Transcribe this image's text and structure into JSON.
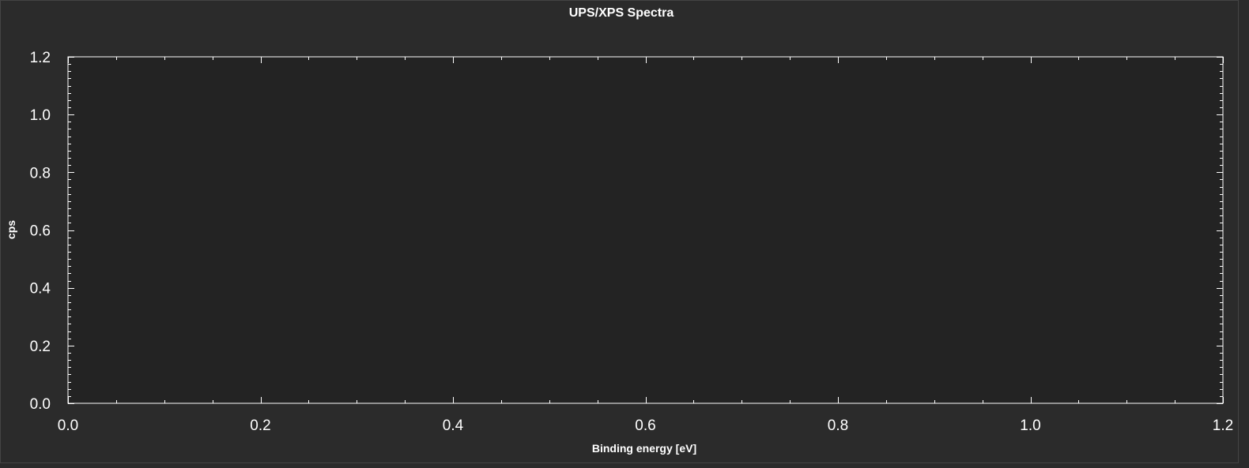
{
  "chart_data": {
    "type": "line",
    "title": "UPS/XPS Spectra",
    "xlabel": "Binding energy [eV]",
    "ylabel": "cps",
    "xlim": [
      0.0,
      1.2
    ],
    "ylim": [
      0.0,
      1.2
    ],
    "x_ticks": [
      "0.0",
      "0.2",
      "0.4",
      "0.6",
      "0.8",
      "1.0",
      "1.2"
    ],
    "y_ticks": [
      "0.0",
      "0.2",
      "0.4",
      "0.6",
      "0.8",
      "1.0",
      "1.2"
    ],
    "grid": false,
    "series": [],
    "colors": {
      "background": "#2b2b2b",
      "plot_area": "#232323",
      "axis": "#ffffff",
      "text": "#ffffff"
    }
  }
}
